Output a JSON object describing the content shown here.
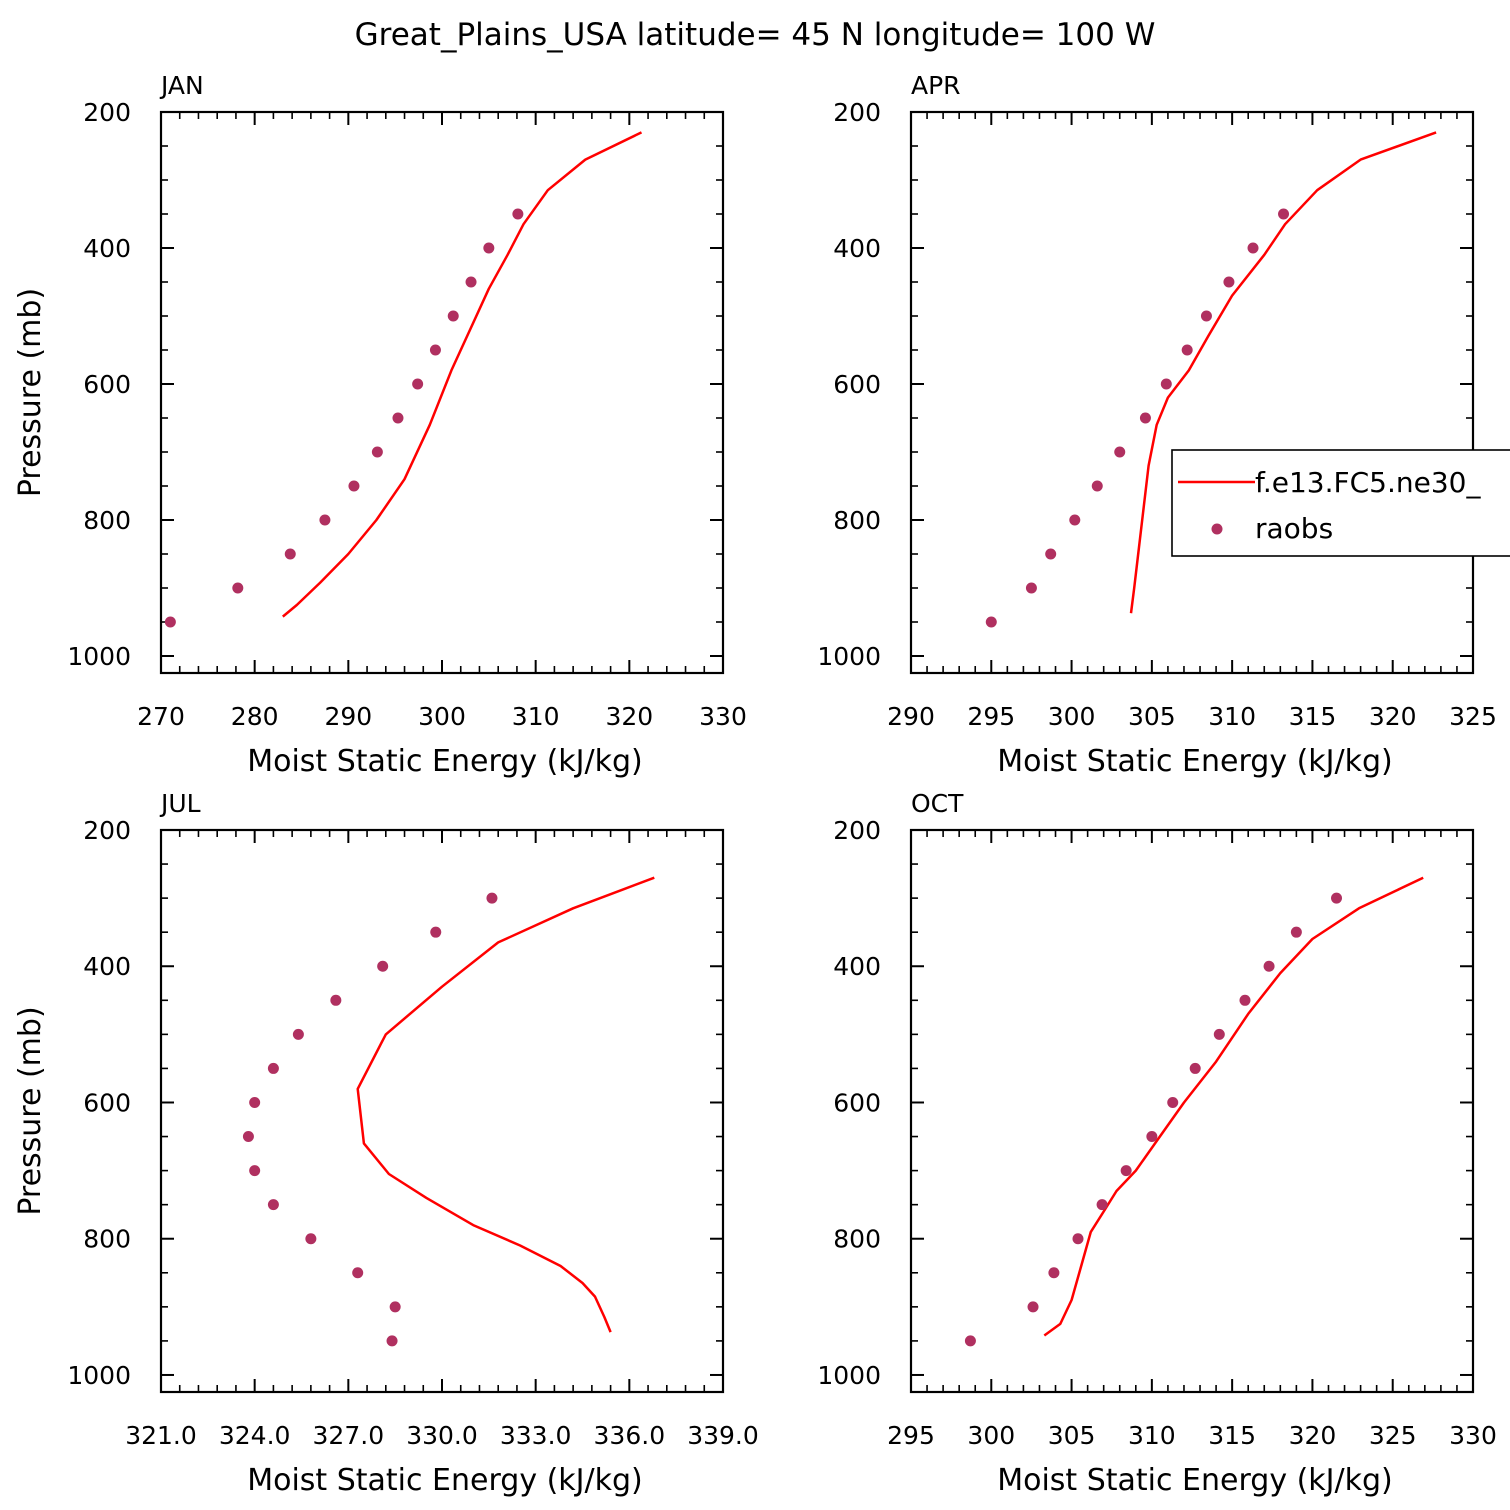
{
  "figure": {
    "title": "Great_Plains_USA  latitude= 45 N longitude= 100 W"
  },
  "colors": {
    "model_line": "#ff0000",
    "obs_marker": "#b03060",
    "axis": "#000000"
  },
  "legend": {
    "entries": [
      {
        "label": "f.e13.FC5.ne30_",
        "style": "line"
      },
      {
        "label": "raobs",
        "style": "marker"
      }
    ]
  },
  "chart_data": [
    {
      "type": "line",
      "panel": "JAN",
      "title": "JAN",
      "xlabel": "Moist Static Energy (kJ/kg)",
      "ylabel": "Pressure (mb)",
      "xlim": [
        270,
        330
      ],
      "ylim": [
        1025,
        200
      ],
      "xticks": [
        "270",
        "280",
        "290",
        "300",
        "310",
        "320",
        "330"
      ],
      "yticks": [
        "200",
        "400",
        "600",
        "800",
        "1000"
      ],
      "series": [
        {
          "name": "f.e13.FC5.ne30_",
          "style": "line",
          "x": [
            283.0,
            284.5,
            287.0,
            290.0,
            293.0,
            296.0,
            298.7,
            301.0,
            303.0,
            305.0,
            307.0,
            308.7,
            311.3,
            315.3,
            321.3
          ],
          "y": [
            942,
            925,
            892,
            850,
            800,
            740,
            660,
            580,
            520,
            460,
            410,
            365,
            315,
            270,
            230
          ]
        },
        {
          "name": "raobs",
          "style": "marker",
          "x": [
            271.0,
            278.2,
            283.8,
            287.5,
            290.6,
            293.1,
            295.3,
            297.4,
            299.3,
            301.2,
            303.1,
            305.0,
            308.1
          ],
          "y": [
            950,
            900,
            850,
            800,
            750,
            700,
            650,
            600,
            550,
            500,
            450,
            400,
            350
          ]
        }
      ]
    },
    {
      "type": "line",
      "panel": "APR",
      "title": "APR",
      "xlabel": "Moist Static Energy (kJ/kg)",
      "ylabel": "",
      "xlim": [
        290,
        325
      ],
      "ylim": [
        1025,
        200
      ],
      "xticks": [
        "290",
        "295",
        "300",
        "305",
        "310",
        "315",
        "320",
        "325"
      ],
      "yticks": [
        "200",
        "400",
        "600",
        "800",
        "1000"
      ],
      "series": [
        {
          "name": "f.e13.FC5.ne30_",
          "style": "line",
          "x": [
            303.7,
            303.9,
            304.2,
            304.5,
            304.8,
            305.3,
            306.0,
            307.3,
            308.5,
            310.0,
            312.0,
            313.3,
            315.3,
            318.0,
            322.7
          ],
          "y": [
            937,
            900,
            840,
            780,
            720,
            660,
            620,
            580,
            530,
            470,
            410,
            365,
            315,
            270,
            230
          ]
        },
        {
          "name": "raobs",
          "style": "marker",
          "x": [
            295.0,
            297.5,
            298.7,
            300.2,
            301.6,
            303.0,
            304.6,
            305.9,
            307.2,
            308.4,
            309.8,
            311.3,
            313.2
          ],
          "y": [
            950,
            900,
            850,
            800,
            750,
            700,
            650,
            600,
            550,
            500,
            450,
            400,
            350
          ]
        }
      ]
    },
    {
      "type": "line",
      "panel": "JUL",
      "title": "JUL",
      "xlabel": "Moist Static Energy (kJ/kg)",
      "ylabel": "Pressure (mb)",
      "xlim": [
        321.0,
        339.0
      ],
      "ylim": [
        1025,
        200
      ],
      "xticks": [
        "321.0",
        "324.0",
        "327.0",
        "330.0",
        "333.0",
        "336.0",
        "339.0"
      ],
      "yticks": [
        "200",
        "400",
        "600",
        "800",
        "1000"
      ],
      "series": [
        {
          "name": "f.e13.FC5.ne30_",
          "style": "line",
          "x": [
            335.4,
            335.2,
            334.9,
            334.5,
            333.8,
            332.5,
            331.0,
            329.5,
            328.3,
            327.5,
            327.3,
            328.2,
            330.0,
            331.8,
            334.2,
            336.8
          ],
          "y": [
            937,
            915,
            885,
            865,
            840,
            810,
            780,
            740,
            705,
            660,
            580,
            500,
            430,
            365,
            315,
            270
          ]
        },
        {
          "name": "raobs",
          "style": "marker",
          "x": [
            328.4,
            328.5,
            327.3,
            325.8,
            324.6,
            324.0,
            323.8,
            324.0,
            324.6,
            325.4,
            326.6,
            328.1,
            329.8,
            331.6
          ],
          "y": [
            950,
            900,
            850,
            800,
            750,
            700,
            650,
            600,
            550,
            500,
            450,
            400,
            350,
            300
          ]
        }
      ]
    },
    {
      "type": "line",
      "panel": "OCT",
      "title": "OCT",
      "xlabel": "Moist Static Energy (kJ/kg)",
      "ylabel": "",
      "xlim": [
        295,
        330
      ],
      "ylim": [
        1025,
        200
      ],
      "xticks": [
        "295",
        "300",
        "305",
        "310",
        "315",
        "320",
        "325",
        "330"
      ],
      "yticks": [
        "200",
        "400",
        "600",
        "800",
        "1000"
      ],
      "series": [
        {
          "name": "f.e13.FC5.ne30_",
          "style": "line",
          "x": [
            303.3,
            304.3,
            305.0,
            305.6,
            306.2,
            307.0,
            307.8,
            309.0,
            310.5,
            312.0,
            314.0,
            316.0,
            318.0,
            320.0,
            322.9,
            326.9
          ],
          "y": [
            942,
            925,
            890,
            840,
            790,
            760,
            730,
            700,
            650,
            600,
            540,
            470,
            410,
            360,
            315,
            270
          ]
        },
        {
          "name": "raobs",
          "style": "marker",
          "x": [
            298.7,
            302.6,
            303.9,
            305.4,
            306.9,
            308.4,
            310.0,
            311.3,
            312.7,
            314.2,
            315.8,
            317.3,
            319.0,
            321.5
          ],
          "y": [
            950,
            900,
            850,
            800,
            750,
            700,
            650,
            600,
            550,
            500,
            450,
            400,
            350,
            300
          ]
        }
      ]
    }
  ]
}
